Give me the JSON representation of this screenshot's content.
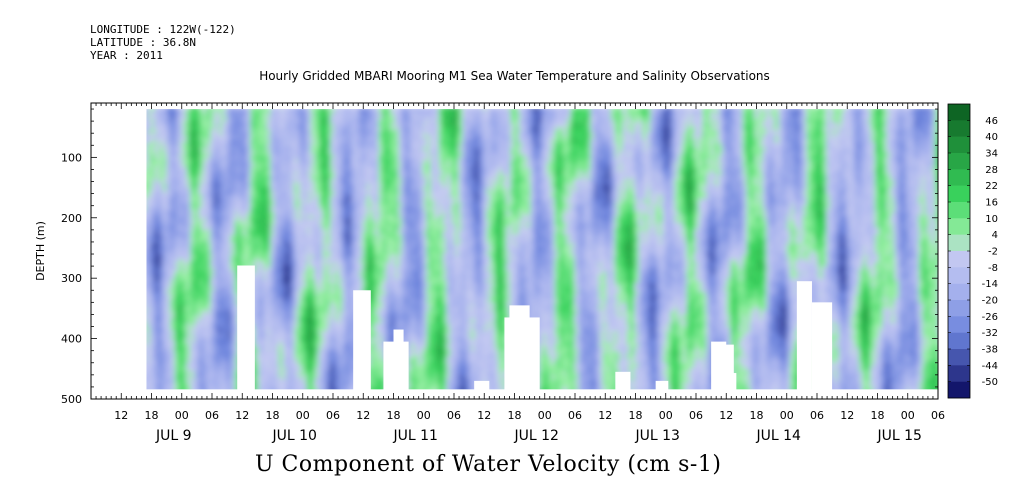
{
  "header": {
    "longitude": "LONGITUDE : 122W(-122)",
    "latitude": "LATITUDE : 36.8N",
    "year": "YEAR : 2011"
  },
  "title": "Hourly Gridded MBARI Mooring M1 Sea Water Temperature and Salinity Observations",
  "bottom_label": "U Component of Water Velocity (cm s-1)",
  "chart_data": {
    "type": "heatmap",
    "ylabel": "DEPTH (m)",
    "y_ticks": [
      100,
      200,
      300,
      400,
      500
    ],
    "y_range": [
      10,
      500
    ],
    "y_inverted": true,
    "x_hour_labels": [
      "12",
      "18",
      "00",
      "06",
      "12",
      "18",
      "00",
      "06",
      "12",
      "18",
      "00",
      "06",
      "12",
      "18",
      "00",
      "06",
      "12",
      "18",
      "00",
      "06",
      "12",
      "18",
      "00",
      "06",
      "12",
      "18",
      "00",
      "06"
    ],
    "x_day_labels": [
      "JUL  9",
      "JUL 10",
      "JUL 11",
      "JUL 12",
      "JUL 13",
      "JUL 14",
      "JUL 15"
    ],
    "x_range_hours_from_jul9_00": [
      6,
      174
    ],
    "data_start_hours_from_jul9_00": 17,
    "colorbar": {
      "labels": [
        "46",
        "40",
        "34",
        "28",
        "22",
        "16",
        "10",
        "4",
        "-2",
        "-8",
        "-14",
        "-20",
        "-26",
        "-32",
        "-38",
        "-44",
        "-50"
      ],
      "min": -50,
      "max": 52
    },
    "colors": {
      "strong_positive": "#0a5a1e",
      "positive": "#3ad45e",
      "weak_positive": "#9cf0a8",
      "neutral": "#c6cbf2",
      "weak_negative": "#a9b4ee",
      "negative": "#6a82dc",
      "strong_negative": "#06065a"
    }
  }
}
